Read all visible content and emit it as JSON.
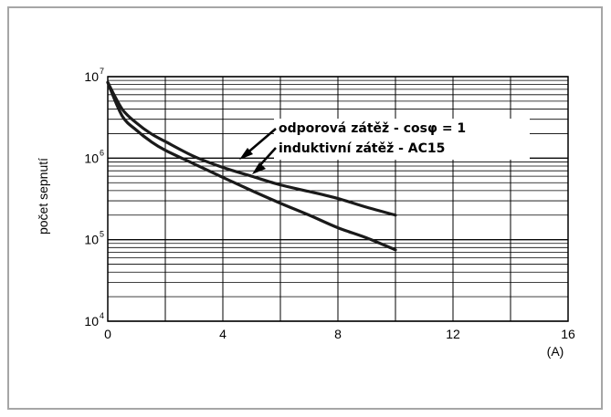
{
  "chart_data": {
    "type": "line",
    "xlabel": "",
    "x_unit": "(A)",
    "ylabel": "počet sepnutí",
    "x_ticks": [
      "0",
      "4",
      "8",
      "12",
      "16"
    ],
    "y_ticks": [
      {
        "base": "10",
        "exp": "4"
      },
      {
        "base": "10",
        "exp": "5"
      },
      {
        "base": "10",
        "exp": "6"
      },
      {
        "base": "10",
        "exp": "7"
      }
    ],
    "xlim": [
      0,
      16
    ],
    "ylim": [
      10000,
      10000000
    ],
    "y_scale": "log",
    "grid": true,
    "series": [
      {
        "name": "odporová zátěž - cosφ = 1",
        "x": [
          0,
          0.5,
          1,
          1.5,
          2,
          3,
          4,
          5,
          6,
          7,
          8,
          9,
          10
        ],
        "values": [
          8500000,
          4000000,
          2700000,
          2000000,
          1600000,
          1050000,
          770000,
          600000,
          470000,
          390000,
          320000,
          250000,
          200000
        ]
      },
      {
        "name": "induktivní zátěž - AC15",
        "x": [
          0,
          0.5,
          1,
          1.5,
          2,
          3,
          4,
          5,
          6,
          7,
          8,
          9,
          10
        ],
        "values": [
          8500000,
          3300000,
          2200000,
          1600000,
          1250000,
          850000,
          580000,
          400000,
          280000,
          200000,
          140000,
          105000,
          75000
        ]
      }
    ],
    "annotations": [
      {
        "text": "odporová zátěž - cosφ = 1",
        "points_to_series": 0
      },
      {
        "text": "induktivní zátěž - AC15",
        "points_to_series": 1
      }
    ],
    "colors": {
      "line": "#1a1a1a",
      "grid": "#000000",
      "frame": "#a6a6a6"
    }
  }
}
